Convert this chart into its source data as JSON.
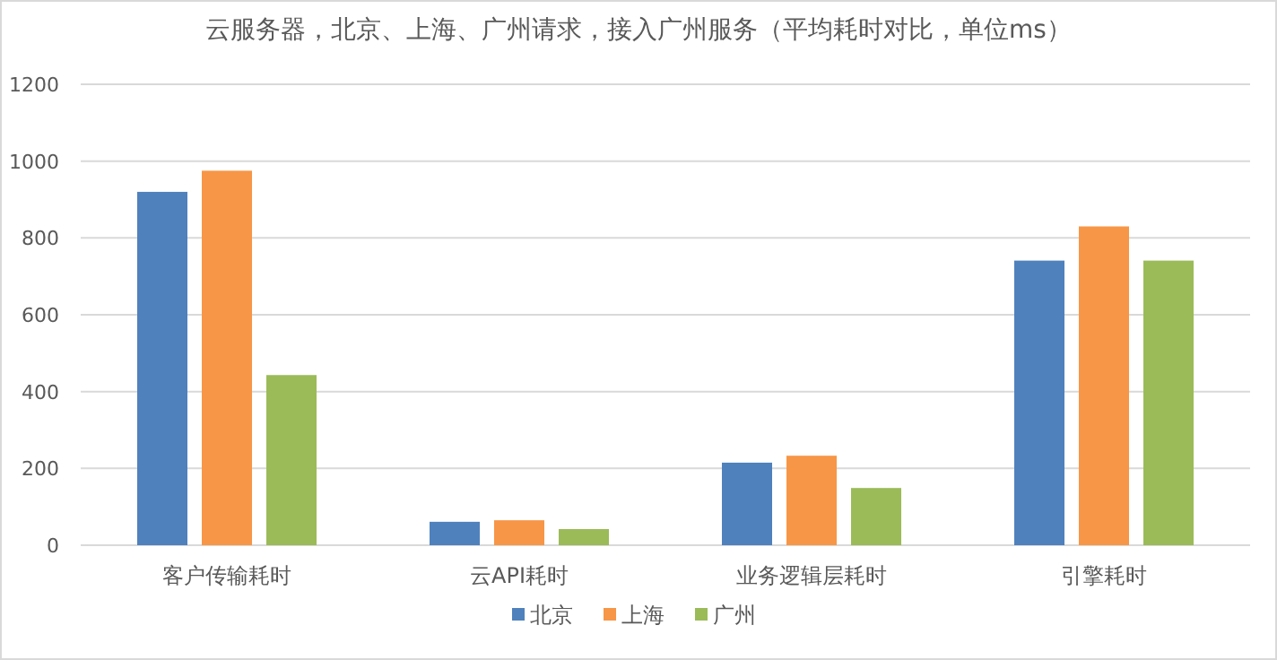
{
  "chart_data": {
    "type": "bar",
    "title": "云服务器，北京、上海、广州请求，接入广州服务（平均耗时对比，单位ms）",
    "categories": [
      "客户传输耗时",
      "云API耗时",
      "业务逻辑层耗时",
      "引擎耗时"
    ],
    "series": [
      {
        "name": "北京",
        "color": "#4f81bd",
        "values": [
          920,
          61,
          215,
          741
        ]
      },
      {
        "name": "上海",
        "color": "#f79646",
        "values": [
          975,
          65,
          233,
          830
        ]
      },
      {
        "name": "广州",
        "color": "#9bbb59",
        "values": [
          443,
          42,
          149,
          741
        ]
      }
    ],
    "ylim": [
      0,
      1200
    ],
    "yticks": [
      0,
      200,
      400,
      600,
      800,
      1000,
      1200
    ],
    "grid": "y",
    "legend": "bottom"
  }
}
